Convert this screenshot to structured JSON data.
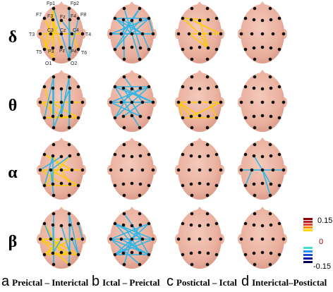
{
  "bands": [
    "δ",
    "θ",
    "α",
    "β"
  ],
  "columns": [
    {
      "letter": "a",
      "text": "Preictal – Interictal"
    },
    {
      "letter": "b",
      "text": "Ictal – Preictal"
    },
    {
      "letter": "c",
      "text": "Postictal – Ictal"
    },
    {
      "letter": "d",
      "text": "Interictal–Postictal"
    }
  ],
  "electrode_labels": [
    "Fp1",
    "Fp2",
    "F7",
    "F3",
    "Fz",
    "F4",
    "F8",
    "T3",
    "C3",
    "Cz",
    "C4",
    "T4",
    "T5",
    "P3",
    "Pz",
    "P4",
    "T6",
    "O1",
    "O2"
  ],
  "colorbar": {
    "max_label": "0.15",
    "mid_label": "0",
    "min_label": "-0.15",
    "positive_colors": [
      "#8b0000",
      "#b22222",
      "#e04030",
      "#ff8c00",
      "#ffd700"
    ],
    "negative_colors": [
      "#40e0d0",
      "#1e90ff",
      "#1a4fd0",
      "#0010a0",
      "#000060"
    ]
  },
  "colors": {
    "head": "#efb3a2",
    "electrode": "#111111",
    "warm_edge": "#ffcc00",
    "cool_edge": "#33b5e5"
  },
  "connections": {
    "0-0": {
      "warm": [
        [
          "Fp1",
          "O1"
        ],
        [
          "Fp1",
          "T5"
        ],
        [
          "F3",
          "O1"
        ],
        [
          "F7",
          "C3"
        ],
        [
          "T3",
          "C4"
        ],
        [
          "C3",
          "T4"
        ],
        [
          "F3",
          "Pz"
        ],
        [
          "Fz",
          "T5"
        ],
        [
          "T3",
          "O1"
        ],
        [
          "Cz",
          "T4"
        ],
        [
          "F4",
          "O2"
        ],
        [
          "C4",
          "T6"
        ]
      ],
      "cool": [
        [
          "Fp1",
          "O2"
        ],
        [
          "Fp2",
          "O2"
        ],
        [
          "F8",
          "O2"
        ],
        [
          "Fp2",
          "P4"
        ],
        [
          "Fz",
          "C4"
        ]
      ]
    },
    "0-1": {
      "warm": [],
      "cool": [
        [
          "F7",
          "F8"
        ],
        [
          "T3",
          "T4"
        ],
        [
          "F3",
          "O1"
        ],
        [
          "Fp1",
          "O2"
        ],
        [
          "Fp2",
          "T5"
        ],
        [
          "F7",
          "Cz"
        ],
        [
          "F8",
          "Cz"
        ],
        [
          "T3",
          "Cz"
        ],
        [
          "C3",
          "T4"
        ],
        [
          "F3",
          "C4"
        ],
        [
          "F4",
          "T5"
        ],
        [
          "T3",
          "F8"
        ],
        [
          "Fz",
          "P4"
        ],
        [
          "Fp2",
          "C3"
        ],
        [
          "F8",
          "T4"
        ],
        [
          "C4",
          "T6"
        ],
        [
          "F7",
          "C4"
        ],
        [
          "Cz",
          "T4"
        ]
      ]
    },
    "0-2": {
      "warm": [
        [
          "F7",
          "F4"
        ],
        [
          "F3",
          "T4"
        ],
        [
          "C3",
          "T4"
        ],
        [
          "Fz",
          "P4"
        ],
        [
          "Cz",
          "P4"
        ],
        [
          "F7",
          "Cz"
        ],
        [
          "C3",
          "P4"
        ]
      ],
      "cool": []
    },
    "0-3": {
      "warm": [],
      "cool": []
    },
    "1-0": {
      "warm": [
        [
          "T3",
          "T4"
        ],
        [
          "T3",
          "C4"
        ],
        [
          "C3",
          "T6"
        ],
        [
          "T5",
          "P4"
        ],
        [
          "T3",
          "Pz"
        ],
        [
          "F7",
          "P3"
        ],
        [
          "T5",
          "T6"
        ]
      ],
      "cool": [
        [
          "Fp1",
          "O1"
        ],
        [
          "Fp2",
          "O2"
        ],
        [
          "F3",
          "P3"
        ],
        [
          "F4",
          "P4"
        ],
        [
          "Fz",
          "Pz"
        ],
        [
          "Fp1",
          "T5"
        ],
        [
          "F4",
          "O1"
        ],
        [
          "Fp2",
          "Pz"
        ]
      ]
    },
    "1-1": {
      "warm": [],
      "cool": [
        [
          "F7",
          "F8"
        ],
        [
          "F7",
          "T4"
        ],
        [
          "T3",
          "F8"
        ],
        [
          "F3",
          "T4"
        ],
        [
          "C3",
          "F4"
        ],
        [
          "F3",
          "P4"
        ],
        [
          "Fz",
          "T5"
        ],
        [
          "T3",
          "C4"
        ],
        [
          "C3",
          "T4"
        ],
        [
          "F7",
          "O2"
        ],
        [
          "T3",
          "P4"
        ],
        [
          "Fp1",
          "C4"
        ],
        [
          "F8",
          "T5"
        ],
        [
          "C4",
          "P3"
        ]
      ]
    },
    "1-2": {
      "warm": [
        [
          "T3",
          "T4"
        ],
        [
          "T3",
          "T5"
        ],
        [
          "C4",
          "T6"
        ],
        [
          "T5",
          "T6"
        ],
        [
          "T3",
          "P3"
        ],
        [
          "P3",
          "T4"
        ],
        [
          "T3",
          "Pz"
        ]
      ],
      "cool": []
    },
    "1-3": {
      "warm": [],
      "cool": []
    },
    "2-0": {
      "warm": [
        [
          "T3",
          "T4"
        ],
        [
          "C3",
          "C4"
        ],
        [
          "T5",
          "T6"
        ],
        [
          "F3",
          "P4"
        ],
        [
          "C3",
          "T6"
        ],
        [
          "F7",
          "C4"
        ],
        [
          "F4",
          "T5"
        ],
        [
          "T3",
          "Pz"
        ]
      ],
      "cool": [
        [
          "F3",
          "P3"
        ],
        [
          "F3",
          "T5"
        ],
        [
          "C3",
          "O1"
        ],
        [
          "Fz",
          "T3"
        ],
        [
          "F4",
          "C3"
        ]
      ]
    },
    "2-1": {
      "warm": [],
      "cool": []
    },
    "2-2": {
      "warm": [],
      "cool": []
    },
    "2-3": {
      "warm": [],
      "cool": [
        [
          "C3",
          "C4"
        ],
        [
          "T3",
          "Cz"
        ],
        [
          "Cz",
          "T4"
        ],
        [
          "Cz",
          "O2"
        ],
        [
          "F3",
          "Cz"
        ],
        [
          "C3",
          "T5"
        ],
        [
          "Cz",
          "P4"
        ]
      ]
    },
    "3-0": {
      "warm": [
        [
          "T3",
          "T4"
        ],
        [
          "T3",
          "P4"
        ],
        [
          "C3",
          "T6"
        ],
        [
          "T5",
          "T6"
        ],
        [
          "P3",
          "P4"
        ],
        [
          "T5",
          "C4"
        ],
        [
          "C3",
          "T4"
        ],
        [
          "F7",
          "Pz"
        ],
        [
          "T3",
          "O2"
        ],
        [
          "Cz",
          "T5"
        ]
      ],
      "cool": [
        [
          "Fp1",
          "O1"
        ],
        [
          "F3",
          "O1"
        ],
        [
          "F4",
          "O2"
        ],
        [
          "Fp2",
          "T6"
        ],
        [
          "C4",
          "T6"
        ],
        [
          "Fz",
          "P4"
        ],
        [
          "F8",
          "T4"
        ],
        [
          "F7",
          "C3"
        ],
        [
          "Cz",
          "P3"
        ],
        [
          "Fp2",
          "P4"
        ]
      ]
    },
    "3-1": {
      "warm": [],
      "cool": [
        [
          "F7",
          "T4"
        ],
        [
          "T3",
          "F8"
        ],
        [
          "T3",
          "T4"
        ],
        [
          "C3",
          "T6"
        ],
        [
          "T5",
          "C4"
        ],
        [
          "F3",
          "P4"
        ],
        [
          "F7",
          "P4"
        ],
        [
          "T3",
          "O2"
        ],
        [
          "T5",
          "T6"
        ],
        [
          "F8",
          "T5"
        ],
        [
          "Fz",
          "T6"
        ],
        [
          "F4",
          "P3"
        ],
        [
          "C3",
          "C4"
        ],
        [
          "T3",
          "T6"
        ],
        [
          "T5",
          "T4"
        ],
        [
          "F7",
          "C4"
        ],
        [
          "Cz",
          "O1"
        ],
        [
          "Fp1",
          "C4"
        ]
      ]
    },
    "3-2": {
      "warm": [],
      "cool": []
    },
    "3-3": {
      "warm": [],
      "cool": []
    }
  }
}
